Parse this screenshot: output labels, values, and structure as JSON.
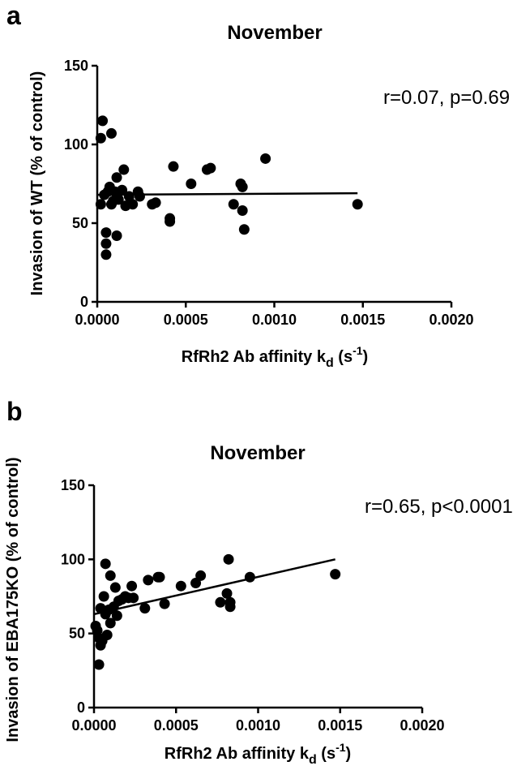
{
  "chart_data": [
    {
      "panel": "a",
      "type": "scatter",
      "title": "November",
      "xlabel": "RfRh2 Ab affinity k",
      "xlabel_sub": "d",
      "xlabel_unit_open": " (s",
      "xlabel_unit_sup": "-1",
      "xlabel_unit_close": ")",
      "ylabel": "Invasion of WT (% of control)",
      "annotation": "r=0.07, p=0.69",
      "xlim": [
        0,
        0.002
      ],
      "ylim": [
        0,
        150
      ],
      "xticks": [
        "0.0000",
        "0.0005",
        "0.0010",
        "0.0015",
        "0.0020"
      ],
      "xtick_values": [
        0,
        0.0005,
        0.001,
        0.0015,
        0.002
      ],
      "yticks": [
        "0",
        "50",
        "100",
        "150"
      ],
      "ytick_values": [
        0,
        50,
        100,
        150
      ],
      "regression_line": {
        "x": [
          0,
          0.00147
        ],
        "y": [
          68,
          69
        ]
      },
      "points": [
        [
          2e-05,
          104
        ],
        [
          3e-05,
          115
        ],
        [
          8e-05,
          107
        ],
        [
          2e-05,
          62
        ],
        [
          4e-05,
          68
        ],
        [
          6e-05,
          70
        ],
        [
          7e-05,
          73
        ],
        [
          9e-05,
          64
        ],
        [
          0.0001,
          70
        ],
        [
          0.00011,
          79
        ],
        [
          0.00012,
          65
        ],
        [
          0.00014,
          71
        ],
        [
          0.00015,
          84
        ],
        [
          0.00016,
          61
        ],
        [
          0.00018,
          67
        ],
        [
          0.0002,
          62
        ],
        [
          0.00023,
          70
        ],
        [
          0.00024,
          67
        ],
        [
          0.00031,
          62
        ],
        [
          0.00033,
          63
        ],
        [
          0.00041,
          53
        ],
        [
          0.00041,
          51
        ],
        [
          0.00043,
          86
        ],
        [
          0.00053,
          75
        ],
        [
          0.00062,
          84
        ],
        [
          0.00064,
          85
        ],
        [
          0.00077,
          62
        ],
        [
          0.00081,
          75
        ],
        [
          0.00082,
          73
        ],
        [
          0.00082,
          58
        ],
        [
          0.00083,
          46
        ],
        [
          0.00095,
          91
        ],
        [
          0.00147,
          62
        ],
        [
          5e-05,
          44
        ],
        [
          5e-05,
          37
        ],
        [
          5e-05,
          30
        ],
        [
          0.00011,
          42
        ],
        [
          8e-05,
          62
        ]
      ]
    },
    {
      "panel": "b",
      "type": "scatter",
      "title": "November",
      "xlabel": "RfRh2 Ab affinity k",
      "xlabel_sub": "d",
      "xlabel_unit_open": " (s",
      "xlabel_unit_sup": "-1",
      "xlabel_unit_close": ")",
      "ylabel": "Invasion of EBA175KO (% of control)",
      "annotation": "r=0.65, p<0.0001",
      "xlim": [
        0,
        0.002
      ],
      "ylim": [
        0,
        150
      ],
      "xticks": [
        "0.0000",
        "0.0005",
        "0.0010",
        "0.0015",
        "0.0020"
      ],
      "xtick_values": [
        0,
        0.0005,
        0.001,
        0.0015,
        0.002
      ],
      "yticks": [
        "0",
        "50",
        "100",
        "150"
      ],
      "ytick_values": [
        0,
        50,
        100,
        150
      ],
      "regression_line": {
        "x": [
          0,
          0.00147
        ],
        "y": [
          63,
          100
        ]
      },
      "points": [
        [
          1e-05,
          55
        ],
        [
          2e-05,
          52
        ],
        [
          3e-05,
          29
        ],
        [
          3e-05,
          47
        ],
        [
          4e-05,
          67
        ],
        [
          4e-05,
          42
        ],
        [
          5e-05,
          45
        ],
        [
          6e-05,
          75
        ],
        [
          7e-05,
          97
        ],
        [
          7e-05,
          63
        ],
        [
          8e-05,
          49
        ],
        [
          9e-05,
          66
        ],
        [
          0.0001,
          57
        ],
        [
          0.0001,
          89
        ],
        [
          0.00012,
          68
        ],
        [
          0.00013,
          81
        ],
        [
          0.00014,
          62
        ],
        [
          0.00015,
          72
        ],
        [
          0.00017,
          73
        ],
        [
          0.00019,
          75
        ],
        [
          0.00021,
          74
        ],
        [
          0.00023,
          82
        ],
        [
          0.00024,
          74
        ],
        [
          0.00031,
          67
        ],
        [
          0.00033,
          86
        ],
        [
          0.00039,
          88
        ],
        [
          0.0004,
          88
        ],
        [
          0.00043,
          70
        ],
        [
          0.00053,
          82
        ],
        [
          0.00062,
          84
        ],
        [
          0.00065,
          89
        ],
        [
          0.00077,
          71
        ],
        [
          0.00081,
          77
        ],
        [
          0.00082,
          100
        ],
        [
          0.00083,
          68
        ],
        [
          0.00083,
          71
        ],
        [
          0.00095,
          88
        ],
        [
          0.00147,
          90
        ]
      ]
    }
  ]
}
